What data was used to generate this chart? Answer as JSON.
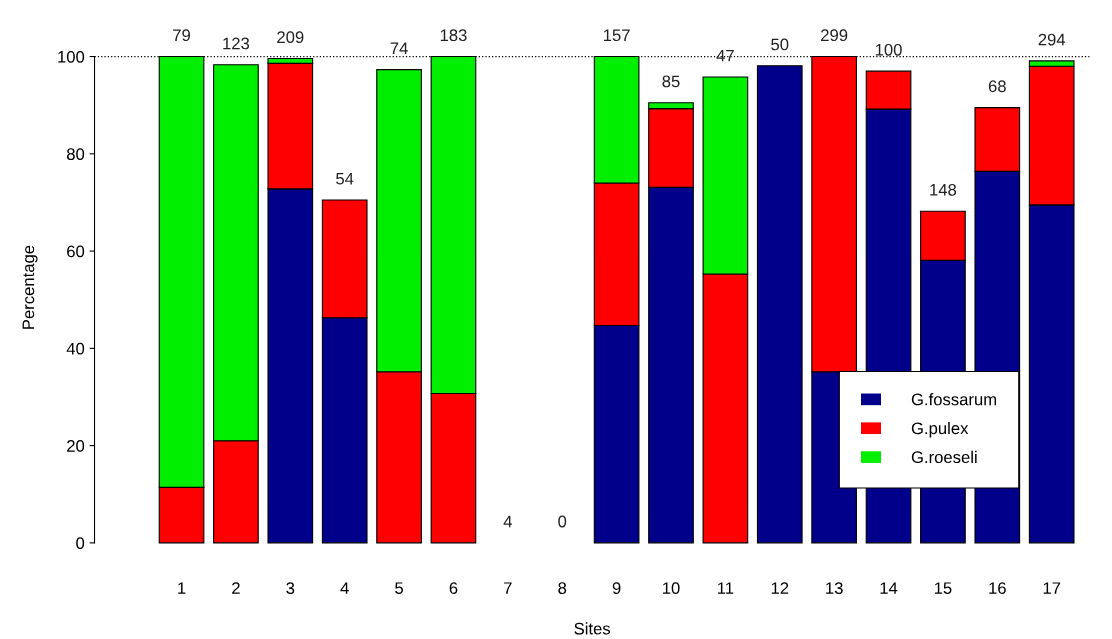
{
  "chart_data": {
    "type": "bar",
    "stacked": true,
    "xlabel": "Sites",
    "ylabel": "Percentage",
    "categories": [
      "1",
      "2",
      "3",
      "4",
      "5",
      "6",
      "7",
      "8",
      "9",
      "10",
      "11",
      "12",
      "13",
      "14",
      "15",
      "16",
      "17"
    ],
    "series": [
      {
        "name": "G.fossarum",
        "color": "#00008b",
        "values": [
          0,
          0,
          72.8,
          46.3,
          0,
          0,
          0,
          0,
          44.7,
          73.1,
          0,
          98.1,
          35.2,
          89.2,
          58.1,
          76.4,
          69.5
        ]
      },
      {
        "name": "G.pulex",
        "color": "#ff0000",
        "values": [
          11.4,
          21.0,
          25.8,
          24.2,
          35.2,
          30.7,
          0,
          0,
          29.3,
          16.2,
          55.3,
          0,
          64.8,
          7.8,
          10.1,
          13.1,
          28.5
        ]
      },
      {
        "name": "G.roeseli",
        "color": "#00ee00",
        "values": [
          88.6,
          77.3,
          1.0,
          0,
          62.1,
          69.3,
          0,
          0,
          26.0,
          1.2,
          40.5,
          0,
          0,
          0,
          0,
          0,
          1.1
        ]
      }
    ],
    "annotations": [
      {
        "text": "79",
        "x": "1",
        "y": 100
      },
      {
        "text": "123",
        "x": "2",
        "y": 98.3
      },
      {
        "text": "209",
        "x": "3",
        "y": 99.6
      },
      {
        "text": "54",
        "x": "4",
        "y": 70.5
      },
      {
        "text": "74",
        "x": "5",
        "y": 97.3
      },
      {
        "text": "183",
        "x": "6",
        "y": 100
      },
      {
        "text": "4",
        "x": "7",
        "y": 0
      },
      {
        "text": "0",
        "x": "8",
        "y": 0
      },
      {
        "text": "157",
        "x": "9",
        "y": 100
      },
      {
        "text": "85",
        "x": "10",
        "y": 90.5
      },
      {
        "text": "47",
        "x": "11",
        "y": 95.8
      },
      {
        "text": "50",
        "x": "12",
        "y": 98.1
      },
      {
        "text": "299",
        "x": "13",
        "y": 100
      },
      {
        "text": "100",
        "x": "14",
        "y": 97.0
      },
      {
        "text": "148",
        "x": "15",
        "y": 68.2
      },
      {
        "text": "68",
        "x": "16",
        "y": 89.5
      },
      {
        "text": "294",
        "x": "17",
        "y": 99.1
      }
    ],
    "ylim": [
      0,
      100
    ],
    "yticks": [
      0,
      20,
      40,
      60,
      80,
      100
    ],
    "ref_lines": [
      {
        "axis": "y",
        "value": 100,
        "line_style": "dotted",
        "color": "#000000"
      }
    ],
    "grid": false,
    "legend": "bottom right"
  }
}
